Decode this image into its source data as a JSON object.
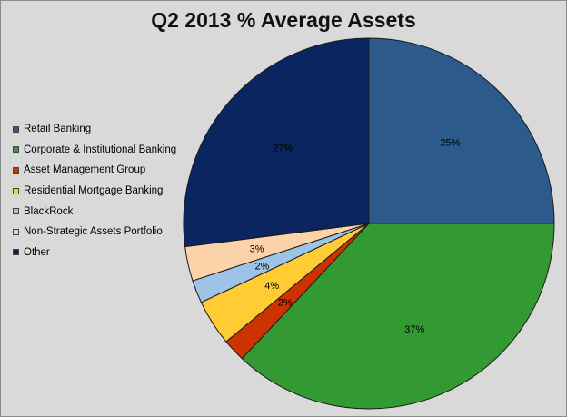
{
  "chart_data": {
    "type": "pie",
    "title": "Q2 2013 % Average Assets",
    "legend_position": "left",
    "slices": [
      {
        "name": "Retail Banking",
        "value": 25,
        "label": "25%",
        "color": "#2c5a8a"
      },
      {
        "name": "Corporate & Institutional Banking",
        "value": 37,
        "label": "37%",
        "color": "#339a33"
      },
      {
        "name": "Asset Management Group",
        "value": 2,
        "label": "2%",
        "color": "#cc3300"
      },
      {
        "name": "Residential Mortgage Banking",
        "value": 4,
        "label": "4%",
        "color": "#ffcc33"
      },
      {
        "name": "BlackRock",
        "value": 2,
        "label": "2%",
        "color": "#9dc3e6"
      },
      {
        "name": "Non-Strategic Assets Portfolio",
        "value": 3,
        "label": "3%",
        "color": "#fcd2a8"
      },
      {
        "name": "Other",
        "value": 27,
        "label": "27%",
        "color": "#0a2560"
      }
    ]
  }
}
